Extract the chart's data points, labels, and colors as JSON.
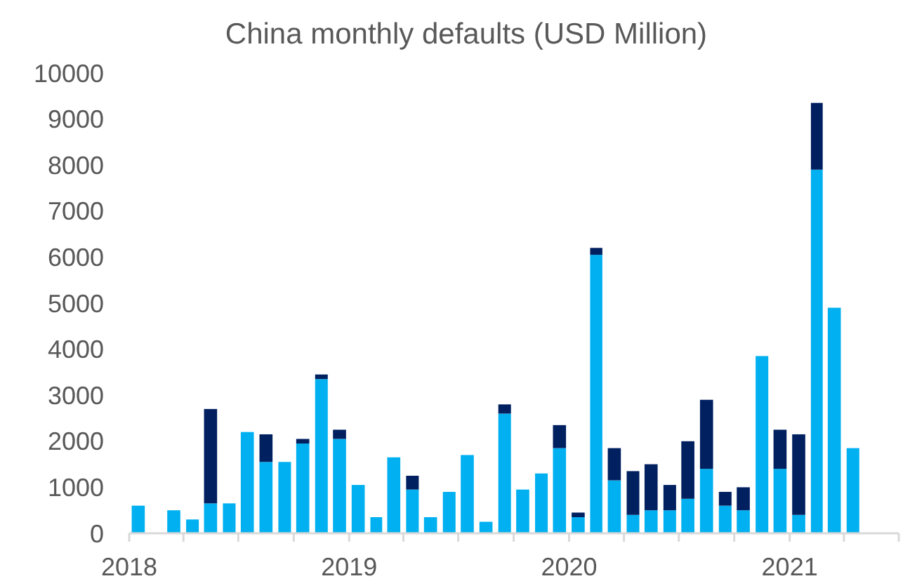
{
  "chart_data": {
    "type": "bar",
    "title": "China monthly defaults (USD Million)",
    "stacked": true,
    "x": [
      "2018-01-16",
      "2018-02-15",
      "2018-03-16",
      "2018-04-16",
      "2018-05-16",
      "2018-06-16",
      "2018-07-16",
      "2018-08-16",
      "2018-09-16",
      "2018-10-16",
      "2018-11-16",
      "2018-12-16",
      "2019-01-16",
      "2019-02-15",
      "2019-03-16",
      "2019-04-16",
      "2019-05-16",
      "2019-06-16",
      "2019-07-16",
      "2019-08-16",
      "2019-09-16",
      "2019-10-16",
      "2019-11-16",
      "2019-12-16",
      "2020-01-16",
      "2020-02-15",
      "2020-03-16",
      "2020-04-16",
      "2020-05-16",
      "2020-06-16",
      "2020-07-16",
      "2020-08-16",
      "2020-09-16",
      "2020-10-16",
      "2020-11-16",
      "2020-12-16",
      "2021-01-16",
      "2021-02-15",
      "2021-03-16",
      "2021-04-16"
    ],
    "series": [
      {
        "color": "#00b0f0",
        "values": [
          600,
          0,
          500,
          300,
          650,
          650,
          2200,
          1550,
          1550,
          1950,
          3350,
          2050,
          1050,
          350,
          1650,
          950,
          350,
          900,
          1700,
          250,
          2600,
          950,
          1300,
          1850,
          350,
          6050,
          1150,
          400,
          500,
          500,
          750,
          1400,
          600,
          500,
          3850,
          1400,
          400,
          7900,
          4900,
          1850
        ]
      },
      {
        "color": "#002060",
        "values": [
          null,
          null,
          null,
          null,
          2050,
          null,
          null,
          600,
          null,
          100,
          100,
          200,
          null,
          null,
          null,
          300,
          null,
          null,
          null,
          null,
          200,
          null,
          null,
          500,
          100,
          150,
          700,
          950,
          1000,
          550,
          1250,
          1500,
          300,
          500,
          null,
          850,
          1750,
          1450,
          null,
          null
        ]
      }
    ],
    "xlim": [
      "2018-01",
      "2021-07"
    ],
    "xticks": [
      {
        "value": "2018-01",
        "label": "2018"
      },
      {
        "value": "2018-04",
        "label": null
      },
      {
        "value": "2018-07",
        "label": null
      },
      {
        "value": "2018-10",
        "label": null
      },
      {
        "value": "2019-01",
        "label": "2019"
      },
      {
        "value": "2019-04",
        "label": null
      },
      {
        "value": "2019-07",
        "label": null
      },
      {
        "value": "2019-10",
        "label": null
      },
      {
        "value": "2020-01",
        "label": "2020"
      },
      {
        "value": "2020-04",
        "label": null
      },
      {
        "value": "2020-07",
        "label": null
      },
      {
        "value": "2020-10",
        "label": null
      },
      {
        "value": "2021-01",
        "label": "2021"
      },
      {
        "value": "2021-04",
        "label": null
      },
      {
        "value": "2021-07",
        "label": null
      }
    ],
    "ylim": [
      0,
      10000
    ],
    "yticks": [
      0,
      1000,
      2000,
      3000,
      4000,
      5000,
      6000,
      7000,
      8000,
      9000,
      10000
    ],
    "grid": false
  }
}
